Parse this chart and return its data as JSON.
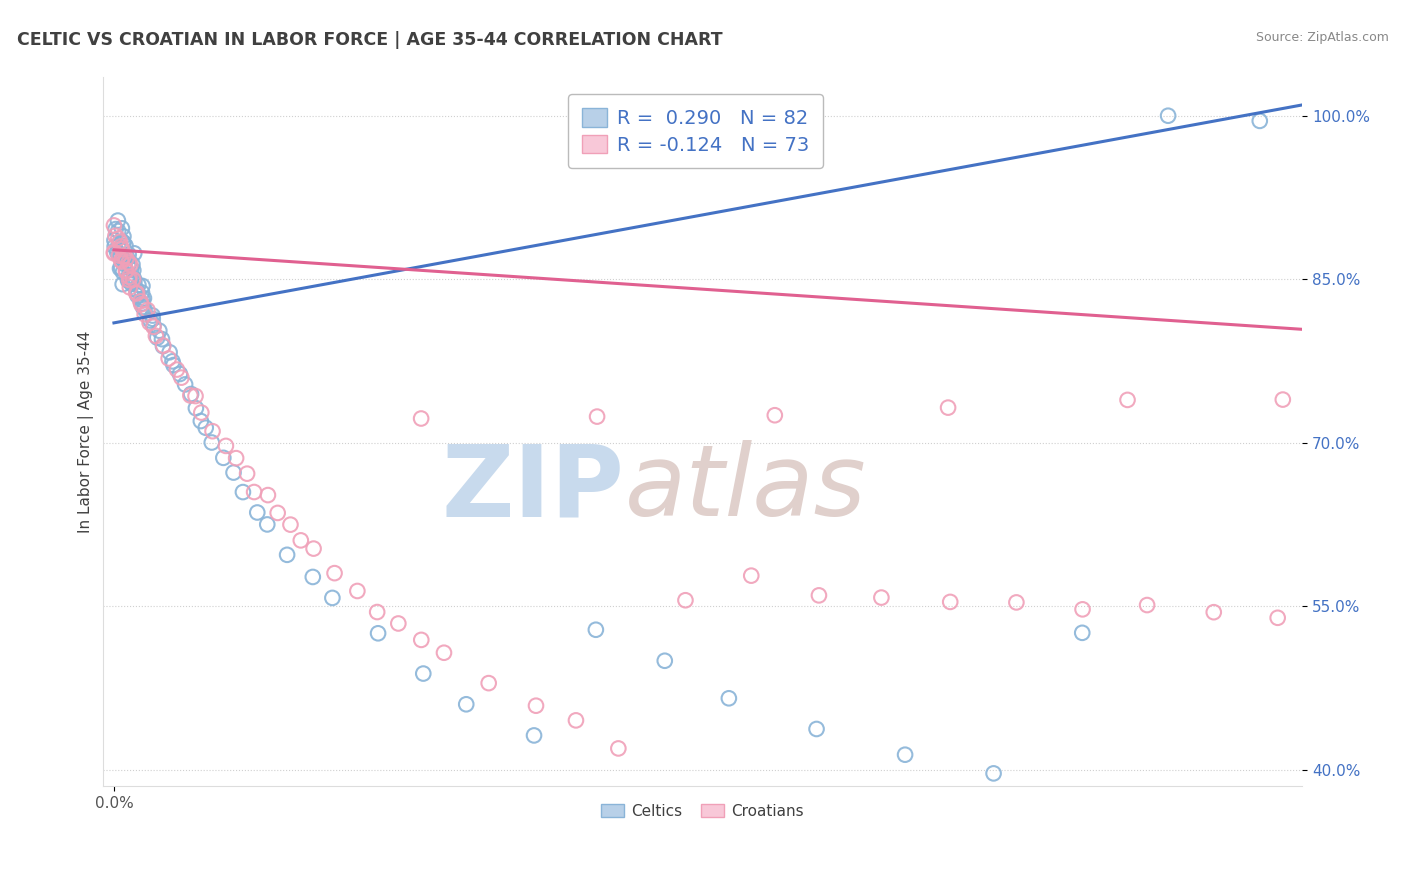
{
  "title": "CELTIC VS CROATIAN IN LABOR FORCE | AGE 35-44 CORRELATION CHART",
  "source_text": "Source: ZipAtlas.com",
  "ylabel": "In Labor Force | Age 35-44",
  "xlim": [
    -0.005,
    0.54
  ],
  "ylim": [
    0.385,
    1.035
  ],
  "yticks": [
    0.4,
    0.55,
    0.7,
    0.85,
    1.0
  ],
  "ytick_labels": [
    "40.0%",
    "55.0%",
    "70.0%",
    "85.0%",
    "100.0%"
  ],
  "xtick_vals": [
    0.0
  ],
  "xtick_labels": [
    "0.0%"
  ],
  "celtic_R": 0.29,
  "celtic_N": 82,
  "croatian_R": -0.124,
  "croatian_N": 73,
  "celtic_color": "#8ab4d8",
  "croatian_color": "#f0a0b8",
  "trend_celtic_color": "#4472c4",
  "trend_croatian_color": "#e06090",
  "background_color": "#ffffff",
  "grid_color": "#d0d0d0",
  "ytick_color": "#4472c4",
  "title_color": "#404040",
  "source_color": "#888888",
  "ylabel_color": "#404040",
  "legend_text_color": "#303030",
  "legend_R_color": "#4472c4",
  "watermark_zip_color": "#c8daed",
  "watermark_atlas_color": "#e0d0cc",
  "celtic_x": [
    0.0,
    0.0,
    0.0,
    0.0,
    0.001,
    0.001,
    0.002,
    0.002,
    0.002,
    0.003,
    0.003,
    0.003,
    0.003,
    0.004,
    0.004,
    0.004,
    0.005,
    0.005,
    0.005,
    0.005,
    0.006,
    0.006,
    0.006,
    0.007,
    0.007,
    0.007,
    0.008,
    0.008,
    0.008,
    0.009,
    0.009,
    0.01,
    0.01,
    0.01,
    0.011,
    0.011,
    0.012,
    0.012,
    0.013,
    0.013,
    0.014,
    0.015,
    0.015,
    0.016,
    0.017,
    0.018,
    0.019,
    0.02,
    0.021,
    0.022,
    0.023,
    0.025,
    0.027,
    0.028,
    0.03,
    0.032,
    0.035,
    0.037,
    0.04,
    0.042,
    0.045,
    0.05,
    0.055,
    0.06,
    0.065,
    0.07,
    0.08,
    0.09,
    0.1,
    0.12,
    0.14,
    0.16,
    0.19,
    0.22,
    0.25,
    0.28,
    0.32,
    0.36,
    0.4,
    0.44,
    0.48,
    0.52
  ],
  "celtic_y": [
    0.874,
    0.883,
    0.893,
    0.9,
    0.871,
    0.886,
    0.862,
    0.878,
    0.895,
    0.858,
    0.87,
    0.882,
    0.896,
    0.855,
    0.868,
    0.88,
    0.851,
    0.863,
    0.877,
    0.892,
    0.848,
    0.861,
    0.875,
    0.845,
    0.859,
    0.872,
    0.842,
    0.856,
    0.87,
    0.839,
    0.852,
    0.836,
    0.848,
    0.862,
    0.833,
    0.845,
    0.83,
    0.842,
    0.827,
    0.84,
    0.824,
    0.82,
    0.834,
    0.817,
    0.813,
    0.81,
    0.806,
    0.802,
    0.798,
    0.794,
    0.79,
    0.783,
    0.776,
    0.77,
    0.762,
    0.754,
    0.744,
    0.734,
    0.723,
    0.713,
    0.7,
    0.685,
    0.668,
    0.653,
    0.638,
    0.623,
    0.6,
    0.578,
    0.558,
    0.522,
    0.49,
    0.462,
    0.432,
    0.53,
    0.498,
    0.468,
    0.44,
    0.415,
    0.398,
    0.522,
    0.998,
    0.995
  ],
  "croatian_x": [
    0.0,
    0.0,
    0.0,
    0.001,
    0.001,
    0.002,
    0.002,
    0.003,
    0.003,
    0.004,
    0.004,
    0.005,
    0.005,
    0.006,
    0.006,
    0.007,
    0.007,
    0.008,
    0.008,
    0.009,
    0.01,
    0.01,
    0.011,
    0.012,
    0.013,
    0.014,
    0.015,
    0.016,
    0.018,
    0.02,
    0.022,
    0.025,
    0.028,
    0.03,
    0.033,
    0.036,
    0.04,
    0.045,
    0.05,
    0.055,
    0.06,
    0.065,
    0.07,
    0.075,
    0.08,
    0.085,
    0.09,
    0.1,
    0.11,
    0.12,
    0.13,
    0.14,
    0.15,
    0.17,
    0.19,
    0.21,
    0.23,
    0.26,
    0.29,
    0.32,
    0.35,
    0.38,
    0.41,
    0.44,
    0.47,
    0.5,
    0.53,
    0.14,
    0.22,
    0.3,
    0.38,
    0.46,
    0.53
  ],
  "croatian_y": [
    0.879,
    0.889,
    0.898,
    0.875,
    0.888,
    0.872,
    0.885,
    0.868,
    0.881,
    0.864,
    0.878,
    0.86,
    0.874,
    0.856,
    0.87,
    0.852,
    0.866,
    0.848,
    0.862,
    0.844,
    0.84,
    0.853,
    0.836,
    0.832,
    0.828,
    0.823,
    0.818,
    0.814,
    0.806,
    0.797,
    0.789,
    0.778,
    0.767,
    0.759,
    0.749,
    0.739,
    0.727,
    0.712,
    0.698,
    0.685,
    0.672,
    0.659,
    0.648,
    0.636,
    0.623,
    0.612,
    0.6,
    0.58,
    0.563,
    0.547,
    0.532,
    0.518,
    0.505,
    0.481,
    0.46,
    0.441,
    0.422,
    0.556,
    0.576,
    0.56,
    0.557,
    0.555,
    0.553,
    0.55,
    0.548,
    0.545,
    0.541,
    0.721,
    0.725,
    0.728,
    0.735,
    0.738,
    0.74
  ]
}
